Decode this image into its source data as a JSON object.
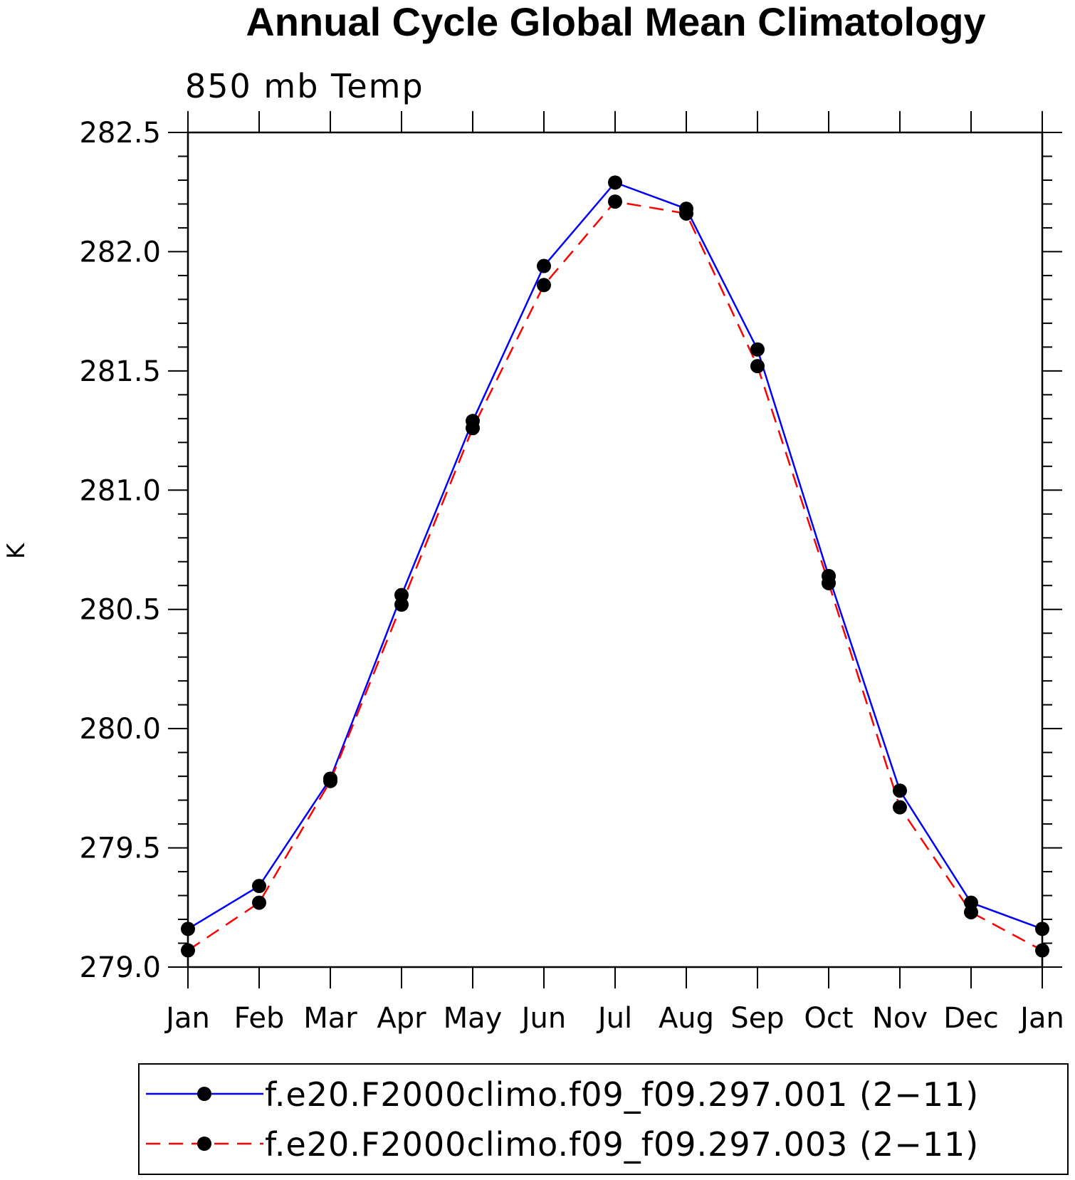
{
  "chart_data": {
    "type": "line",
    "title": "Annual Cycle Global Mean Climatology",
    "subtitle": "850 mb Temp",
    "ylabel": "K",
    "xlabel": "",
    "categories": [
      "Jan",
      "Feb",
      "Mar",
      "Apr",
      "May",
      "Jun",
      "Jul",
      "Aug",
      "Sep",
      "Oct",
      "Nov",
      "Dec",
      "Jan"
    ],
    "ylim": [
      279.0,
      282.5
    ],
    "yticks": [
      "279.0",
      "279.5",
      "280.0",
      "280.5",
      "281.0",
      "281.5",
      "282.0",
      "282.5"
    ],
    "grid": false,
    "legend_position": "bottom",
    "series": [
      {
        "name": "f.e20.F2000climo.f09_f09.297.001 (2−11)",
        "color": "#0000ff",
        "line_style": "solid",
        "marker": "filled-circle",
        "values": [
          279.16,
          279.34,
          279.79,
          280.56,
          281.29,
          281.94,
          282.29,
          282.18,
          281.59,
          280.64,
          279.74,
          279.27,
          279.16
        ]
      },
      {
        "name": "f.e20.F2000climo.f09_f09.297.003 (2−11)",
        "color": "#ff0000",
        "line_style": "dashed",
        "marker": "filled-circle",
        "values": [
          279.07,
          279.27,
          279.78,
          280.52,
          281.26,
          281.86,
          282.21,
          282.16,
          281.52,
          280.61,
          279.67,
          279.23,
          279.07
        ]
      }
    ]
  }
}
